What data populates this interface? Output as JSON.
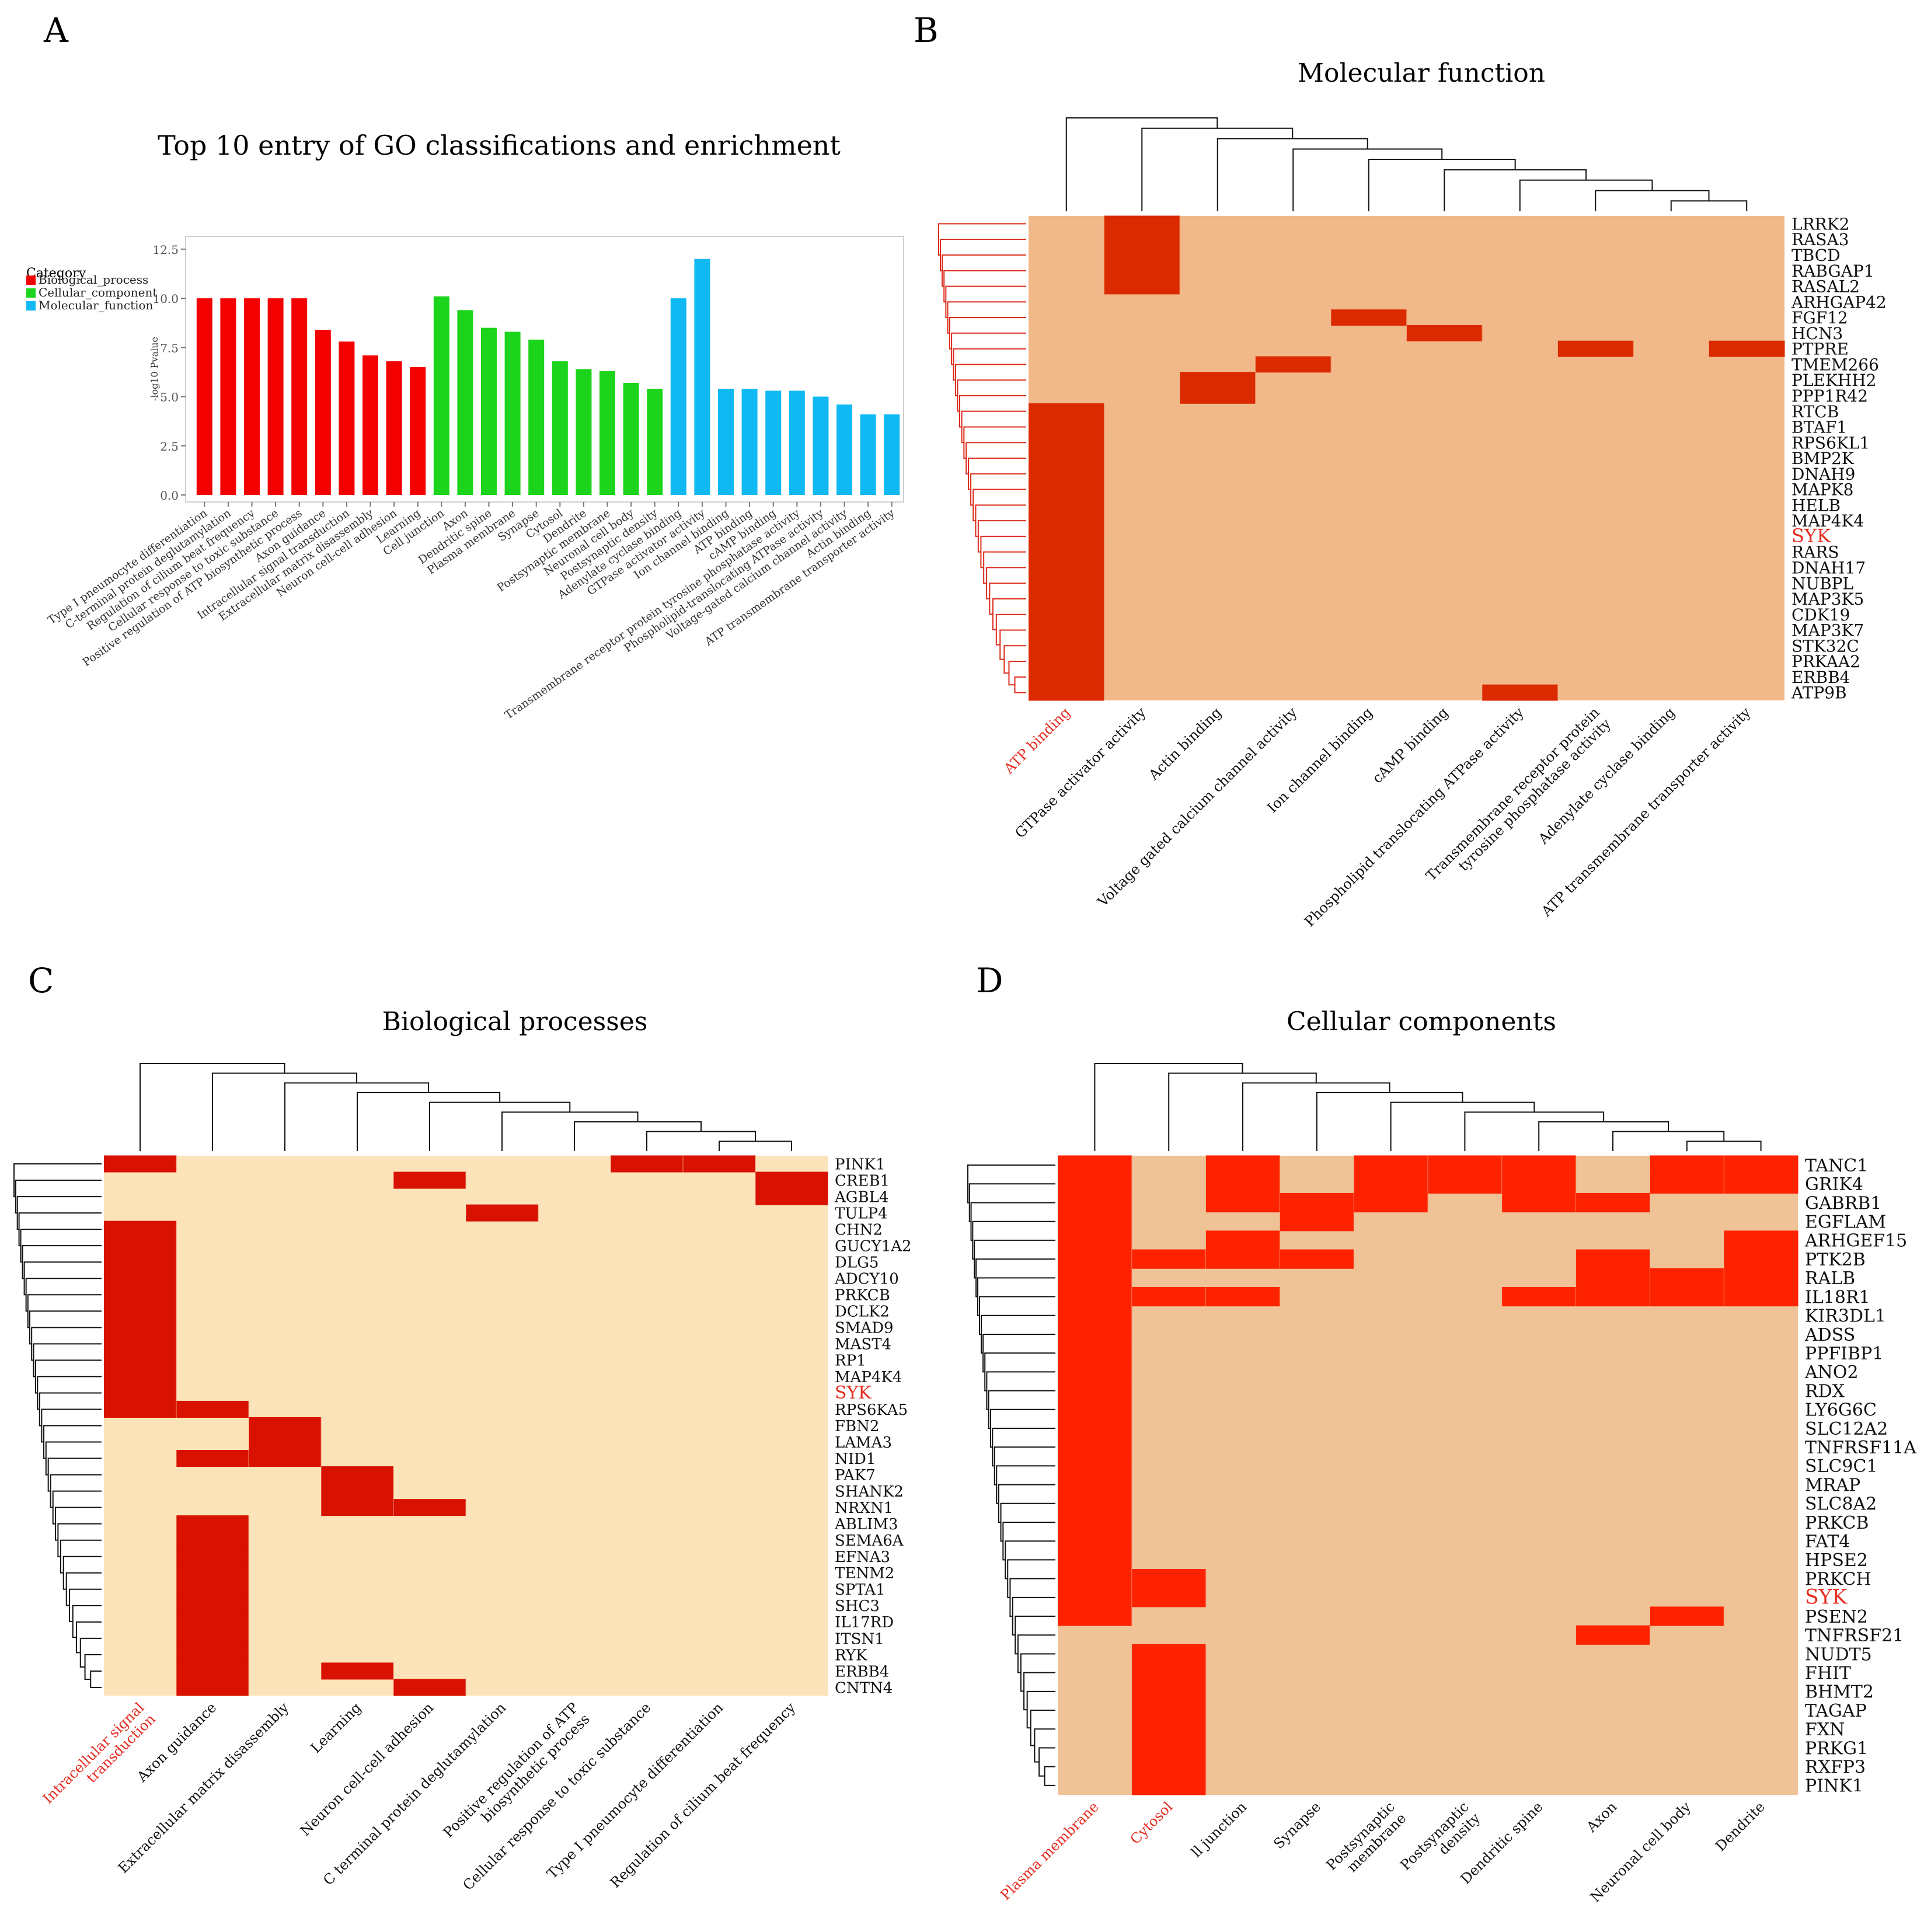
{
  "colors": {
    "biological_process": "#f30000",
    "cellular_component": "#1bd41b",
    "molecular_function": "#10b9f2",
    "heat_bg_B": "#f1b88a",
    "heat_bg_C": "#fde3b9",
    "heat_bg_D": "#f0c397",
    "heat_hi_B": "#db2a00",
    "heat_hi_C": "#d81100",
    "heat_hi_D": "#fe2200",
    "dendro_red": "#dd2a1a",
    "highlight": "#e52b1f"
  },
  "panelA": {
    "letter": "A",
    "title": "Top 10 entry of GO classifications and enrichment",
    "legend_title": "Category",
    "legend": [
      {
        "label": "Biological_process",
        "color_key": "biological_process"
      },
      {
        "label": "Cellular_component",
        "color_key": "cellular_component"
      },
      {
        "label": "Molecular_function",
        "color_key": "molecular_function"
      }
    ],
    "chart_data": {
      "type": "bar",
      "title": "Top 10 entry of GO classifications and enrichment",
      "ylabel": "-log10 Pvalue",
      "xlabel": "",
      "ylim": [
        0,
        13
      ],
      "yticks": [
        "0.0",
        "2.5",
        "5.0",
        "7.5",
        "10.0",
        "12.5"
      ],
      "categories": [
        "Type I pneumocyte differentiation",
        "C-terminal protein deglutamylation",
        "Regulation of cilium beat frequency",
        "Cellular response to toxic substance",
        "Positive regulation of ATP biosynthetic process",
        "Axon guidance",
        "Intracellular signal transduction",
        "Extracellular matrix disassembly",
        "Neuron cell-cell adhesion",
        "Learning",
        "Cell junction",
        "Axon",
        "Dendritic spine",
        "Plasma membrane",
        "Synapse",
        "Cytosol",
        "Dendrite",
        "Postsynaptic membrane",
        "Neuronal cell body",
        "Postsynaptic density",
        "Adenylate cyclase binding",
        "GTPase activator activity",
        "Ion channel binding",
        "ATP binding",
        "cAMP binding",
        "Transmembrane receptor protein tyrosine phosphatase activity",
        "Phospholipid-translocating ATPase activity",
        "Voltage-gated calcium channel activity",
        "Actin binding",
        "ATP transmembrane transporter activity"
      ],
      "values": [
        10.0,
        10.0,
        10.0,
        10.0,
        10.0,
        8.4,
        7.8,
        7.1,
        6.8,
        6.5,
        10.1,
        9.4,
        8.5,
        8.3,
        7.9,
        6.8,
        6.4,
        6.3,
        5.7,
        5.4,
        10.0,
        12.0,
        5.4,
        5.4,
        5.3,
        5.3,
        5.0,
        4.6,
        4.1,
        4.1
      ],
      "category_class": [
        "biological_process",
        "biological_process",
        "biological_process",
        "biological_process",
        "biological_process",
        "biological_process",
        "biological_process",
        "biological_process",
        "biological_process",
        "biological_process",
        "cellular_component",
        "cellular_component",
        "cellular_component",
        "cellular_component",
        "cellular_component",
        "cellular_component",
        "cellular_component",
        "cellular_component",
        "cellular_component",
        "cellular_component",
        "molecular_function",
        "molecular_function",
        "molecular_function",
        "molecular_function",
        "molecular_function",
        "molecular_function",
        "molecular_function",
        "molecular_function",
        "molecular_function",
        "molecular_function"
      ]
    }
  },
  "panelB": {
    "letter": "B",
    "title": "Molecular function",
    "highlight_gene": "SYK",
    "highlight_column": 0,
    "columns": [
      "ATP binding",
      "GTPase activator activity",
      "Actin binding",
      "Voltage gated calcium channel activity",
      "Ion channel binding",
      "cAMP binding",
      "Phospholipid translocating ATPase activity",
      "Transmembrane receptor protein\ntyrosine phosphatase activity",
      "Adenylate cyclase binding",
      "ATP transmembrane transporter activity"
    ],
    "genes": [
      "LRRK2",
      "RASA3",
      "TBCD",
      "RABGAP1",
      "RASAL2",
      "ARHGAP42",
      "FGF12",
      "HCN3",
      "PTPRE",
      "TMEM266",
      "PLEKHH2",
      "PPP1R42",
      "RTCB",
      "BTAF1",
      "RPS6KL1",
      "BMP2K",
      "DNAH9",
      "MAPK8",
      "HELB",
      "MAP4K4",
      "SYK",
      "RARS",
      "DNAH17",
      "NUBPL",
      "MAP3K5",
      "CDK19",
      "MAP3K7",
      "STK32C",
      "PRKAA2",
      "ERBB4",
      "ATP9B"
    ],
    "cells": [
      [
        0,
        1,
        0,
        0,
        0,
        0,
        0,
        0,
        0,
        0
      ],
      [
        0,
        1,
        0,
        0,
        0,
        0,
        0,
        0,
        0,
        0
      ],
      [
        0,
        1,
        0,
        0,
        0,
        0,
        0,
        0,
        0,
        0
      ],
      [
        0,
        1,
        0,
        0,
        0,
        0,
        0,
        0,
        0,
        0
      ],
      [
        0,
        1,
        0,
        0,
        0,
        0,
        0,
        0,
        0,
        0
      ],
      [
        0,
        0,
        0,
        0,
        0,
        0,
        0,
        0,
        0,
        0
      ],
      [
        0,
        0,
        0,
        0,
        1,
        0,
        0,
        0,
        0,
        0
      ],
      [
        0,
        0,
        0,
        0,
        0,
        1,
        0,
        0,
        0,
        0
      ],
      [
        0,
        0,
        0,
        0,
        0,
        0,
        0,
        1,
        0,
        1
      ],
      [
        0,
        0,
        0,
        1,
        0,
        0,
        0,
        0,
        0,
        0
      ],
      [
        0,
        0,
        1,
        0,
        0,
        0,
        0,
        0,
        0,
        0
      ],
      [
        0,
        0,
        1,
        0,
        0,
        0,
        0,
        0,
        0,
        0
      ],
      [
        1,
        0,
        0,
        0,
        0,
        0,
        0,
        0,
        0,
        0
      ],
      [
        1,
        0,
        0,
        0,
        0,
        0,
        0,
        0,
        0,
        0
      ],
      [
        1,
        0,
        0,
        0,
        0,
        0,
        0,
        0,
        0,
        0
      ],
      [
        1,
        0,
        0,
        0,
        0,
        0,
        0,
        0,
        0,
        0
      ],
      [
        1,
        0,
        0,
        0,
        0,
        0,
        0,
        0,
        0,
        0
      ],
      [
        1,
        0,
        0,
        0,
        0,
        0,
        0,
        0,
        0,
        0
      ],
      [
        1,
        0,
        0,
        0,
        0,
        0,
        0,
        0,
        0,
        0
      ],
      [
        1,
        0,
        0,
        0,
        0,
        0,
        0,
        0,
        0,
        0
      ],
      [
        1,
        0,
        0,
        0,
        0,
        0,
        0,
        0,
        0,
        0
      ],
      [
        1,
        0,
        0,
        0,
        0,
        0,
        0,
        0,
        0,
        0
      ],
      [
        1,
        0,
        0,
        0,
        0,
        0,
        0,
        0,
        0,
        0
      ],
      [
        1,
        0,
        0,
        0,
        0,
        0,
        0,
        0,
        0,
        0
      ],
      [
        1,
        0,
        0,
        0,
        0,
        0,
        0,
        0,
        0,
        0
      ],
      [
        1,
        0,
        0,
        0,
        0,
        0,
        0,
        0,
        0,
        0
      ],
      [
        1,
        0,
        0,
        0,
        0,
        0,
        0,
        0,
        0,
        0
      ],
      [
        1,
        0,
        0,
        0,
        0,
        0,
        0,
        0,
        0,
        0
      ],
      [
        1,
        0,
        0,
        0,
        0,
        0,
        0,
        0,
        0,
        0
      ],
      [
        1,
        0,
        0,
        0,
        0,
        0,
        0,
        0,
        0,
        0
      ],
      [
        1,
        0,
        0,
        0,
        0,
        0,
        1,
        0,
        0,
        0
      ]
    ]
  },
  "panelC": {
    "letter": "C",
    "title": "Biological processes",
    "highlight_gene": "SYK",
    "highlight_column": 0,
    "columns": [
      "Intracellular signal\ntransduction",
      "Axon guidance",
      "Extracellular matrix disassembly",
      "Learning",
      "Neuron cell-cell adhesion",
      "C terminal protein deglutamylation",
      "Positive regulation of ATP\nbiosynthetic process",
      "Cellular response to toxic substance",
      "Type I pneumocyte differentiation",
      "Regulation of cilium beat frequency"
    ],
    "genes": [
      "PINK1",
      "CREB1",
      "AGBL4",
      "TULP4",
      "CHN2",
      "GUCY1A2",
      "DLG5",
      "ADCY10",
      "PRKCB",
      "DCLK2",
      "SMAD9",
      "MAST4",
      "RP1",
      "MAP4K4",
      "SYK",
      "RPS6KA5",
      "FBN2",
      "LAMA3",
      "NID1",
      "PAK7",
      "SHANK2",
      "NRXN1",
      "ABLIM3",
      "SEMA6A",
      "EFNA3",
      "TENM2",
      "SPTA1",
      "SHC3",
      "IL17RD",
      "ITSN1",
      "RYK",
      "ERBB4",
      "CNTN4"
    ],
    "cells": [
      [
        1,
        0,
        0,
        0,
        0,
        0,
        0,
        1,
        1,
        0
      ],
      [
        0,
        0,
        0,
        0,
        1,
        0,
        0,
        0,
        0,
        1
      ],
      [
        0,
        0,
        0,
        0,
        0,
        0,
        0,
        0,
        0,
        1
      ],
      [
        0,
        0,
        0,
        0,
        0,
        1,
        0,
        0,
        0,
        0
      ],
      [
        1,
        0,
        0,
        0,
        0,
        0,
        0,
        0,
        0,
        0
      ],
      [
        1,
        0,
        0,
        0,
        0,
        0,
        0,
        0,
        0,
        0
      ],
      [
        1,
        0,
        0,
        0,
        0,
        0,
        0,
        0,
        0,
        0
      ],
      [
        1,
        0,
        0,
        0,
        0,
        0,
        0,
        0,
        0,
        0
      ],
      [
        1,
        0,
        0,
        0,
        0,
        0,
        0,
        0,
        0,
        0
      ],
      [
        1,
        0,
        0,
        0,
        0,
        0,
        0,
        0,
        0,
        0
      ],
      [
        1,
        0,
        0,
        0,
        0,
        0,
        0,
        0,
        0,
        0
      ],
      [
        1,
        0,
        0,
        0,
        0,
        0,
        0,
        0,
        0,
        0
      ],
      [
        1,
        0,
        0,
        0,
        0,
        0,
        0,
        0,
        0,
        0
      ],
      [
        1,
        0,
        0,
        0,
        0,
        0,
        0,
        0,
        0,
        0
      ],
      [
        1,
        0,
        0,
        0,
        0,
        0,
        0,
        0,
        0,
        0
      ],
      [
        1,
        1,
        0,
        0,
        0,
        0,
        0,
        0,
        0,
        0
      ],
      [
        0,
        0,
        1,
        0,
        0,
        0,
        0,
        0,
        0,
        0
      ],
      [
        0,
        0,
        1,
        0,
        0,
        0,
        0,
        0,
        0,
        0
      ],
      [
        0,
        1,
        1,
        0,
        0,
        0,
        0,
        0,
        0,
        0
      ],
      [
        0,
        0,
        0,
        1,
        0,
        0,
        0,
        0,
        0,
        0
      ],
      [
        0,
        0,
        0,
        1,
        0,
        0,
        0,
        0,
        0,
        0
      ],
      [
        0,
        0,
        0,
        1,
        1,
        0,
        0,
        0,
        0,
        0
      ],
      [
        0,
        1,
        0,
        0,
        0,
        0,
        0,
        0,
        0,
        0
      ],
      [
        0,
        1,
        0,
        0,
        0,
        0,
        0,
        0,
        0,
        0
      ],
      [
        0,
        1,
        0,
        0,
        0,
        0,
        0,
        0,
        0,
        0
      ],
      [
        0,
        1,
        0,
        0,
        0,
        0,
        0,
        0,
        0,
        0
      ],
      [
        0,
        1,
        0,
        0,
        0,
        0,
        0,
        0,
        0,
        0
      ],
      [
        0,
        1,
        0,
        0,
        0,
        0,
        0,
        0,
        0,
        0
      ],
      [
        0,
        1,
        0,
        0,
        0,
        0,
        0,
        0,
        0,
        0
      ],
      [
        0,
        1,
        0,
        0,
        0,
        0,
        0,
        0,
        0,
        0
      ],
      [
        0,
        1,
        0,
        0,
        0,
        0,
        0,
        0,
        0,
        0
      ],
      [
        0,
        1,
        0,
        1,
        0,
        0,
        0,
        0,
        0,
        0
      ],
      [
        0,
        1,
        0,
        0,
        1,
        0,
        0,
        0,
        0,
        0
      ]
    ]
  },
  "panelD": {
    "letter": "D",
    "title": "Cellular components",
    "highlight_gene": "SYK",
    "highlight_columns": [
      0,
      1
    ],
    "columns": [
      "Plasma membrane",
      "Cytosol",
      "ll junction",
      "Synapse",
      "Postsynaptic\nmembrane",
      "Postsynaptic\ndensity",
      "Dendritic spine",
      "Axon",
      "Neuronal cell body",
      "Dendrite"
    ],
    "genes": [
      "TANC1",
      "GRIK4",
      "GABRB1",
      "EGFLAM",
      "ARHGEF15",
      "PTK2B",
      "RALB",
      "IL18R1",
      "KIR3DL1",
      "ADSS",
      "PPFIBP1",
      "ANO2",
      "RDX",
      "LY6G6C",
      "SLC12A2",
      "TNFRSF11A",
      "SLC9C1",
      "MRAP",
      "SLC8A2",
      "PRKCB",
      "FAT4",
      "HPSE2",
      "PRKCH",
      "SYK",
      "PSEN2",
      "TNFRSF21",
      "NUDT5",
      "FHIT",
      "BHMT2",
      "TAGAP",
      "FXN",
      "PRKG1",
      "RXFP3",
      "PINK1"
    ],
    "cells": [
      [
        1,
        0,
        1,
        0,
        1,
        1,
        1,
        0,
        1,
        1
      ],
      [
        1,
        0,
        1,
        0,
        1,
        1,
        1,
        0,
        1,
        1
      ],
      [
        1,
        0,
        1,
        1,
        1,
        0,
        1,
        1,
        0,
        0
      ],
      [
        1,
        0,
        0,
        1,
        0,
        0,
        0,
        0,
        0,
        0
      ],
      [
        1,
        0,
        1,
        0,
        0,
        0,
        0,
        0,
        0,
        1
      ],
      [
        1,
        1,
        1,
        1,
        0,
        0,
        0,
        1,
        0,
        1
      ],
      [
        1,
        0,
        0,
        0,
        0,
        0,
        0,
        1,
        1,
        1
      ],
      [
        1,
        1,
        1,
        0,
        0,
        0,
        1,
        1,
        1,
        1
      ],
      [
        1,
        0,
        0,
        0,
        0,
        0,
        0,
        0,
        0,
        0
      ],
      [
        1,
        0,
        0,
        0,
        0,
        0,
        0,
        0,
        0,
        0
      ],
      [
        1,
        0,
        0,
        0,
        0,
        0,
        0,
        0,
        0,
        0
      ],
      [
        1,
        0,
        0,
        0,
        0,
        0,
        0,
        0,
        0,
        0
      ],
      [
        1,
        0,
        0,
        0,
        0,
        0,
        0,
        0,
        0,
        0
      ],
      [
        1,
        0,
        0,
        0,
        0,
        0,
        0,
        0,
        0,
        0
      ],
      [
        1,
        0,
        0,
        0,
        0,
        0,
        0,
        0,
        0,
        0
      ],
      [
        1,
        0,
        0,
        0,
        0,
        0,
        0,
        0,
        0,
        0
      ],
      [
        1,
        0,
        0,
        0,
        0,
        0,
        0,
        0,
        0,
        0
      ],
      [
        1,
        0,
        0,
        0,
        0,
        0,
        0,
        0,
        0,
        0
      ],
      [
        1,
        0,
        0,
        0,
        0,
        0,
        0,
        0,
        0,
        0
      ],
      [
        1,
        0,
        0,
        0,
        0,
        0,
        0,
        0,
        0,
        0
      ],
      [
        1,
        0,
        0,
        0,
        0,
        0,
        0,
        0,
        0,
        0
      ],
      [
        1,
        0,
        0,
        0,
        0,
        0,
        0,
        0,
        0,
        0
      ],
      [
        1,
        1,
        0,
        0,
        0,
        0,
        0,
        0,
        0,
        0
      ],
      [
        1,
        1,
        0,
        0,
        0,
        0,
        0,
        0,
        0,
        0
      ],
      [
        1,
        0,
        0,
        0,
        0,
        0,
        0,
        0,
        1,
        0
      ],
      [
        0,
        0,
        0,
        0,
        0,
        0,
        0,
        1,
        0,
        0
      ],
      [
        0,
        1,
        0,
        0,
        0,
        0,
        0,
        0,
        0,
        0
      ],
      [
        0,
        1,
        0,
        0,
        0,
        0,
        0,
        0,
        0,
        0
      ],
      [
        0,
        1,
        0,
        0,
        0,
        0,
        0,
        0,
        0,
        0
      ],
      [
        0,
        1,
        0,
        0,
        0,
        0,
        0,
        0,
        0,
        0
      ],
      [
        0,
        1,
        0,
        0,
        0,
        0,
        0,
        0,
        0,
        0
      ],
      [
        0,
        1,
        0,
        0,
        0,
        0,
        0,
        0,
        0,
        0
      ],
      [
        0,
        1,
        0,
        0,
        0,
        0,
        0,
        0,
        0,
        0
      ],
      [
        0,
        1,
        0,
        0,
        0,
        0,
        0,
        0,
        0,
        0
      ]
    ]
  }
}
